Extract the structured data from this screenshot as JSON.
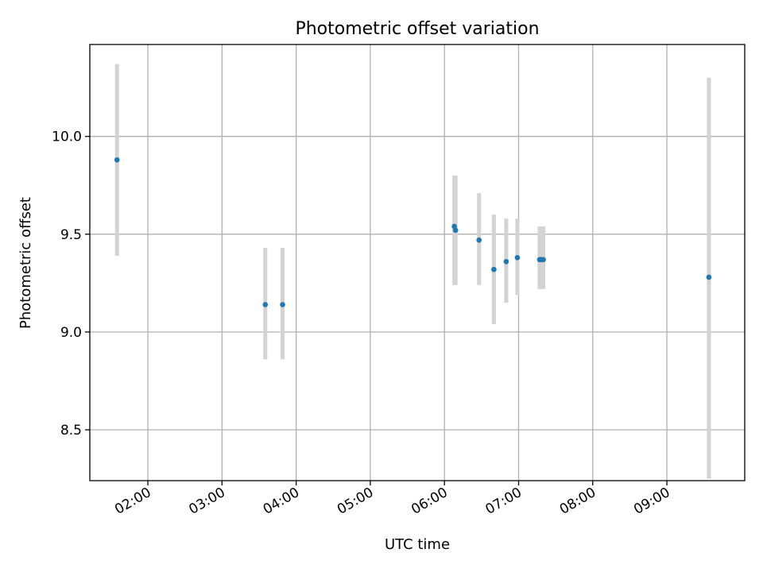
{
  "chart_data": {
    "type": "scatter",
    "title": "Photometric offset variation",
    "xlabel": "UTC time",
    "ylabel": "Photometric offset",
    "x_type": "time",
    "xlim": [
      "01:13",
      "10:03"
    ],
    "ylim": [
      8.24,
      10.47
    ],
    "x_ticks": [
      "02:00",
      "03:00",
      "04:00",
      "05:00",
      "06:00",
      "07:00",
      "08:00",
      "09:00"
    ],
    "y_ticks": [
      8.5,
      9.0,
      9.5,
      10.0
    ],
    "y_tick_labels": [
      "8.5",
      "9.0",
      "9.5",
      "10.0"
    ],
    "grid": true,
    "point_color": "#1f77b4",
    "errorbar_color": "#d3d3d3",
    "points": [
      {
        "time": "01:35",
        "y": 9.88,
        "lo": 9.39,
        "hi": 10.37
      },
      {
        "time": "03:35",
        "y": 9.14,
        "lo": 8.86,
        "hi": 9.43
      },
      {
        "time": "03:49",
        "y": 9.14,
        "lo": 8.86,
        "hi": 9.43
      },
      {
        "time": "06:08",
        "y": 9.54,
        "lo": 9.24,
        "hi": 9.8
      },
      {
        "time": "06:09",
        "y": 9.52,
        "lo": 9.24,
        "hi": 9.8
      },
      {
        "time": "06:28",
        "y": 9.47,
        "lo": 9.24,
        "hi": 9.71
      },
      {
        "time": "06:40",
        "y": 9.32,
        "lo": 9.04,
        "hi": 9.6
      },
      {
        "time": "06:50",
        "y": 9.36,
        "lo": 9.15,
        "hi": 9.58
      },
      {
        "time": "06:59",
        "y": 9.38,
        "lo": 9.19,
        "hi": 9.58
      },
      {
        "time": "07:17",
        "y": 9.37,
        "lo": 9.22,
        "hi": 9.54
      },
      {
        "time": "07:18",
        "y": 9.37,
        "lo": 9.22,
        "hi": 9.54
      },
      {
        "time": "07:20",
        "y": 9.37,
        "lo": 9.22,
        "hi": 9.54
      },
      {
        "time": "09:34",
        "y": 9.28,
        "lo": 8.25,
        "hi": 10.3
      }
    ]
  }
}
